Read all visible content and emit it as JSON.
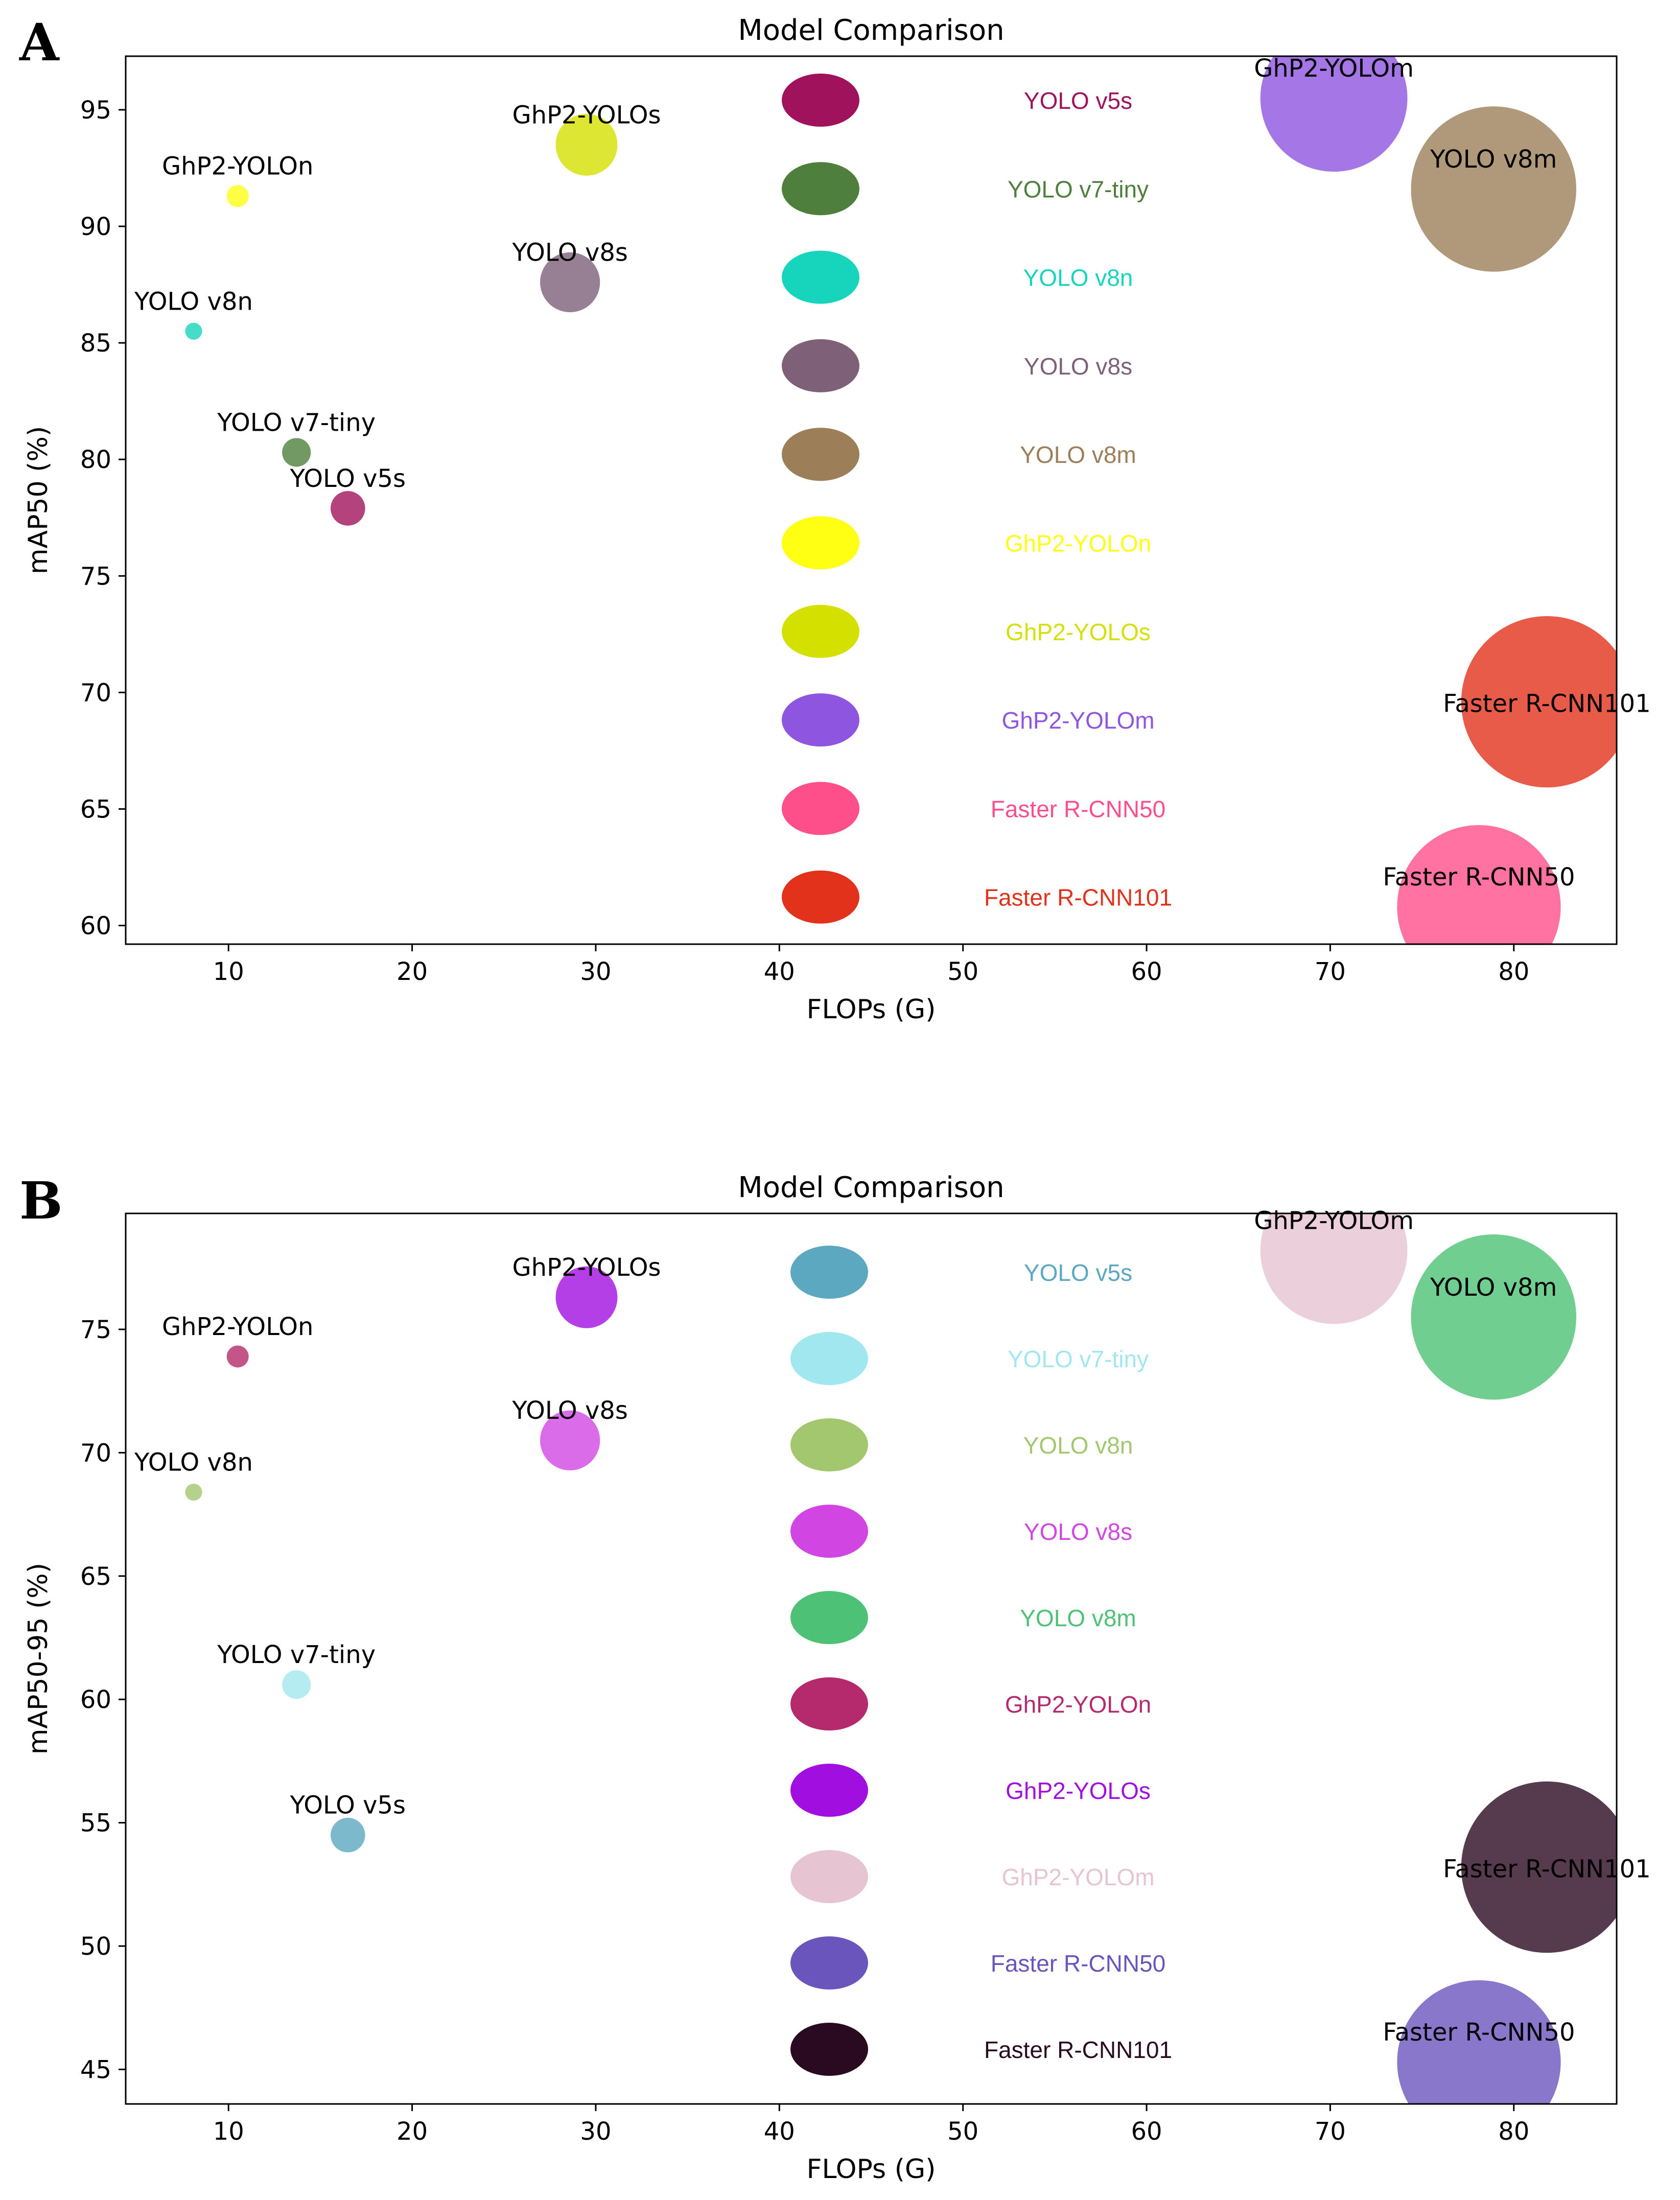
{
  "figure": {
    "panel_labels": [
      "A",
      "B"
    ]
  },
  "chart_data": [
    {
      "panel": "A",
      "type": "scatter",
      "title": "Model Comparison",
      "xlabel": "FLOPs (G)",
      "ylabel": "mAP50 (%)",
      "xlim": [
        4.4,
        85.6
      ],
      "ylim": [
        59.2,
        97.3
      ],
      "xticks": [
        10,
        20,
        30,
        40,
        50,
        60,
        70,
        80
      ],
      "yticks": [
        60,
        65,
        70,
        75,
        80,
        85,
        90,
        95
      ],
      "grid": false,
      "legend": {
        "placement": "center",
        "layout": "vertical"
      },
      "points": [
        {
          "name": "YOLO v5s",
          "x": 16.5,
          "y": 77.9,
          "size": 16.5,
          "color": "#a0135c"
        },
        {
          "name": "YOLO v7-tiny",
          "x": 13.7,
          "y": 80.3,
          "size": 13.7,
          "color": "#4f7f3c"
        },
        {
          "name": "YOLO v8n",
          "x": 8.1,
          "y": 85.5,
          "size": 8.1,
          "color": "#17d5bd"
        },
        {
          "name": "YOLO v8s",
          "x": 28.6,
          "y": 87.6,
          "size": 28.6,
          "color": "#7e6079"
        },
        {
          "name": "YOLO v8m",
          "x": 78.9,
          "y": 91.6,
          "size": 78.9,
          "color": "#9c7e59"
        },
        {
          "name": "GhP2-YOLOn",
          "x": 10.5,
          "y": 91.3,
          "size": 10.5,
          "color": "#ffff14"
        },
        {
          "name": "GhP2-YOLOs",
          "x": 29.5,
          "y": 93.5,
          "size": 29.5,
          "color": "#d4e000"
        },
        {
          "name": "GhP2-YOLOm",
          "x": 70.2,
          "y": 95.5,
          "size": 70.2,
          "color": "#8e55e0"
        },
        {
          "name": "Faster R-CNN50",
          "x": 78.1,
          "y": 60.8,
          "size": 78.1,
          "color": "#ff4f8b"
        },
        {
          "name": "Faster R-CNN101",
          "x": 81.8,
          "y": 69.6,
          "size": 81.8,
          "color": "#e3321b"
        }
      ]
    },
    {
      "panel": "B",
      "type": "scatter",
      "title": "Model Comparison",
      "xlabel": "FLOPs (G)",
      "ylabel": "mAP50-95 (%)",
      "xlim": [
        4.4,
        85.6
      ],
      "ylim": [
        43.6,
        79.7
      ],
      "xticks": [
        10,
        20,
        30,
        40,
        50,
        60,
        70,
        80
      ],
      "yticks": [
        45,
        50,
        55,
        60,
        65,
        70,
        75
      ],
      "grid": false,
      "legend": {
        "placement": "center",
        "layout": "vertical"
      },
      "points": [
        {
          "name": "YOLO v5s",
          "x": 16.5,
          "y": 54.5,
          "size": 16.5,
          "color": "#5ba8c0"
        },
        {
          "name": "YOLO v7-tiny",
          "x": 13.7,
          "y": 60.6,
          "size": 13.7,
          "color": "#a1e7ef"
        },
        {
          "name": "YOLO v8n",
          "x": 8.1,
          "y": 68.4,
          "size": 8.1,
          "color": "#a2c76f"
        },
        {
          "name": "YOLO v8s",
          "x": 28.6,
          "y": 70.5,
          "size": 28.6,
          "color": "#d146e3"
        },
        {
          "name": "YOLO v8m",
          "x": 78.9,
          "y": 75.5,
          "size": 78.9,
          "color": "#4dc276"
        },
        {
          "name": "GhP2-YOLOn",
          "x": 10.5,
          "y": 73.9,
          "size": 10.5,
          "color": "#b52a6c"
        },
        {
          "name": "GhP2-YOLOs",
          "x": 29.5,
          "y": 76.3,
          "size": 29.5,
          "color": "#a10fe0"
        },
        {
          "name": "GhP2-YOLOm",
          "x": 70.2,
          "y": 78.2,
          "size": 70.2,
          "color": "#e6c4d2"
        },
        {
          "name": "Faster R-CNN50",
          "x": 78.1,
          "y": 45.3,
          "size": 78.1,
          "color": "#6a55bd"
        },
        {
          "name": "Faster R-CNN101",
          "x": 81.8,
          "y": 53.2,
          "size": 81.8,
          "color": "#2a0a20"
        }
      ]
    }
  ]
}
